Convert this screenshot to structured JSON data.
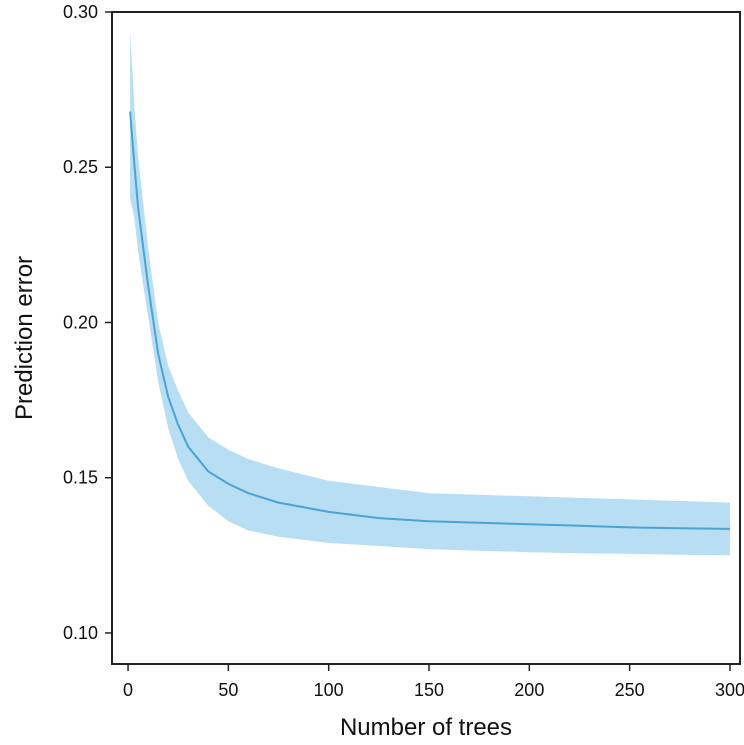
{
  "chart_data": {
    "type": "line",
    "title": "",
    "xlabel": "Number of trees",
    "ylabel": "Prediction error",
    "xlim": [
      -8,
      305
    ],
    "ylim": [
      0.09,
      0.3
    ],
    "xticks": [
      0,
      50,
      100,
      150,
      200,
      250,
      300
    ],
    "xtick_labels": [
      "0",
      "50",
      "100",
      "150",
      "200",
      "250",
      "300"
    ],
    "yticks": [
      0.1,
      0.15,
      0.2,
      0.25,
      0.3
    ],
    "ytick_labels": [
      "0.10",
      "0.15",
      "0.20",
      "0.25",
      "0.30"
    ],
    "grid": false,
    "legend": "none",
    "colors": {
      "line": "#4aa3d6",
      "band": "#aad8f1",
      "axis": "#222222"
    },
    "series": [
      {
        "x": [
          1,
          3,
          5,
          8,
          10,
          15,
          20,
          25,
          30,
          40,
          50,
          60,
          75,
          100,
          125,
          150,
          175,
          200,
          225,
          250,
          275,
          300
        ],
        "y": [
          0.268,
          0.252,
          0.237,
          0.222,
          0.212,
          0.19,
          0.176,
          0.167,
          0.16,
          0.152,
          0.148,
          0.145,
          0.142,
          0.139,
          0.137,
          0.136,
          0.1355,
          0.135,
          0.1345,
          0.134,
          0.1337,
          0.1335
        ],
        "lower": [
          0.24,
          0.234,
          0.223,
          0.21,
          0.202,
          0.181,
          0.166,
          0.156,
          0.149,
          0.141,
          0.136,
          0.133,
          0.131,
          0.129,
          0.128,
          0.127,
          0.1265,
          0.126,
          0.1257,
          0.1255,
          0.1252,
          0.125
        ],
        "upper": [
          0.294,
          0.271,
          0.253,
          0.236,
          0.224,
          0.2,
          0.186,
          0.178,
          0.171,
          0.163,
          0.159,
          0.156,
          0.153,
          0.149,
          0.147,
          0.145,
          0.1445,
          0.144,
          0.1435,
          0.143,
          0.1425,
          0.142
        ]
      }
    ]
  }
}
